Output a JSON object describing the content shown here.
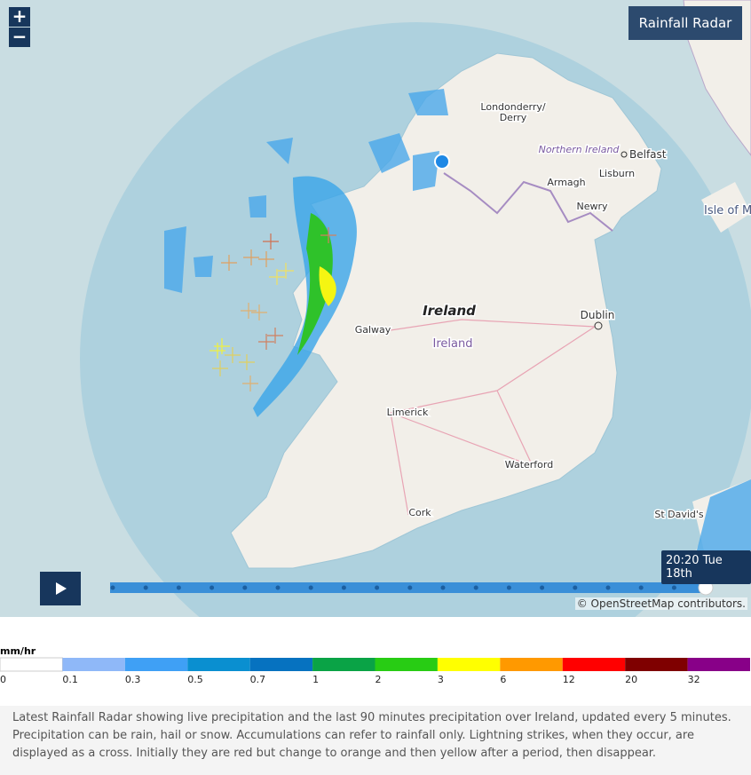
{
  "zoom": {
    "in": "+",
    "out": "−"
  },
  "title": "Rainfall Radar",
  "places": [
    "Londonderry/",
    "Derry",
    "Northern Ireland",
    "Belfast",
    "Armagh",
    "Lisburn",
    "Newry",
    "Isle of M",
    "Ireland",
    "Dublin",
    "Galway",
    "Ireland",
    "Limerick",
    "Waterford",
    "Cork",
    "St David's"
  ],
  "timestamp": "20:20 Tue 18th",
  "attribution": "© OpenStreetMap contributors.",
  "legend": {
    "unit": "mm/hr",
    "stops": [
      {
        "label": 0,
        "color": "#ffffff"
      },
      {
        "label": 0.1,
        "color": "#8fb8f8"
      },
      {
        "label": 0.3,
        "color": "#3fa0f5"
      },
      {
        "label": 0.5,
        "color": "#0a8fd0"
      },
      {
        "label": 0.7,
        "color": "#0672c0"
      },
      {
        "label": 1,
        "color": "#0aa346"
      },
      {
        "label": 2,
        "color": "#28cc14"
      },
      {
        "label": 3,
        "color": "#ffff00"
      },
      {
        "label": 6,
        "color": "#ff9900"
      },
      {
        "label": 12,
        "color": "#ff0000"
      },
      {
        "label": 20,
        "color": "#7f0000"
      },
      {
        "label": 32,
        "color": "#880088"
      }
    ]
  },
  "description": "Latest Rainfall Radar showing live precipitation and the last 90 minutes precipitation over Ireland, updated every 5 minutes. Precipitation can be rain, hail or snow. Accumulations can refer to rainfall only. Lightning strikes, when they occur, are displayed as a cross. Initially they are red but change to orange and then yellow after a period, then disappear."
}
